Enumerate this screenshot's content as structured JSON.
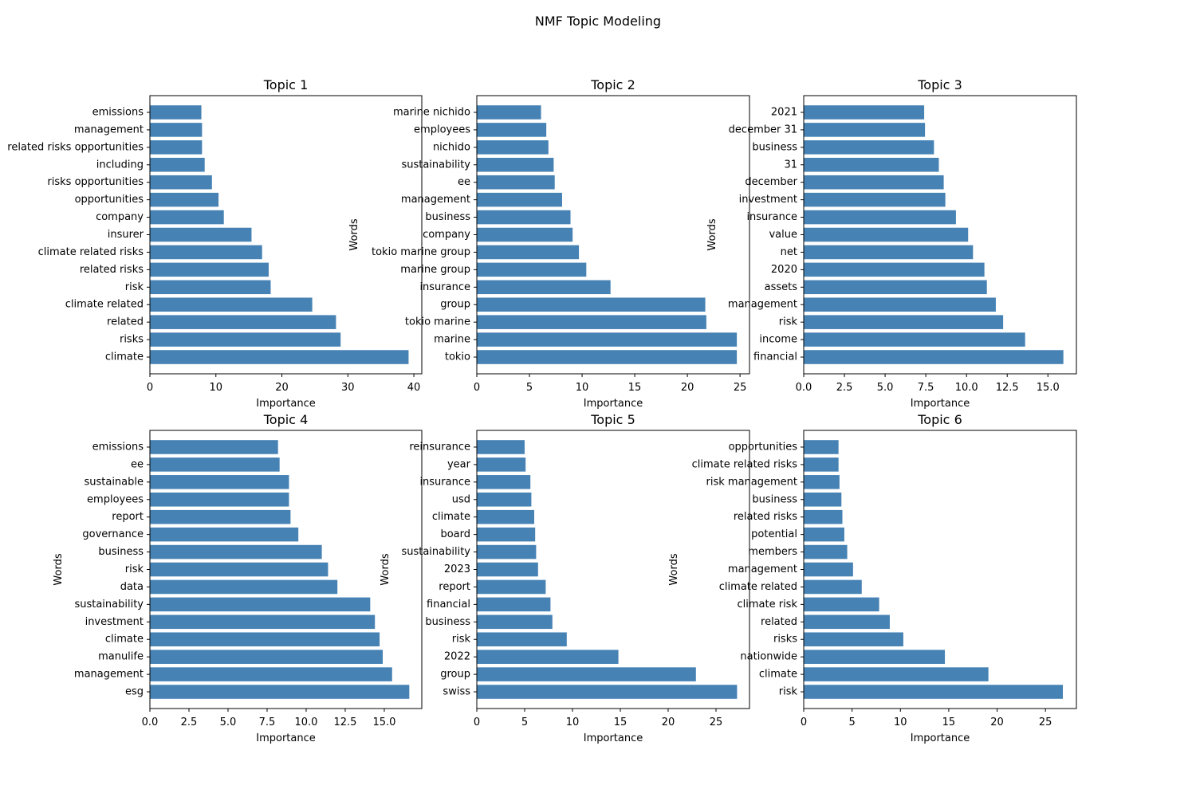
{
  "figure": {
    "title": "NMF Topic Modeling"
  },
  "colors": {
    "bar": "#4682b4",
    "axis": "#000000",
    "background": "#ffffff"
  },
  "chart_data": [
    {
      "type": "bar",
      "orientation": "horizontal",
      "title": "Topic 1",
      "xlabel": "Importance",
      "ylabel": "",
      "xlim": [
        0,
        41.2
      ],
      "xticks": [
        0,
        10,
        20,
        30,
        40
      ],
      "xtick_labels": [
        "0",
        "10",
        "20",
        "30",
        "40"
      ],
      "categories": [
        "climate",
        "risks",
        "related",
        "climate related",
        "risk",
        "related risks",
        "climate related risks",
        "insurer",
        "company",
        "opportunities",
        "risks opportunities",
        "including",
        "related risks opportunities",
        "management",
        "emissions"
      ],
      "values": [
        39.2,
        28.9,
        28.2,
        24.6,
        18.3,
        18.0,
        17.0,
        15.4,
        11.2,
        10.4,
        9.4,
        8.3,
        7.9,
        7.9,
        7.8
      ]
    },
    {
      "type": "bar",
      "orientation": "horizontal",
      "title": "Topic 2",
      "xlabel": "Importance",
      "ylabel": "Words",
      "xlim": [
        0,
        25.9
      ],
      "xticks": [
        0,
        5,
        10,
        15,
        20,
        25
      ],
      "xtick_labels": [
        "0",
        "5",
        "10",
        "15",
        "20",
        "25"
      ],
      "categories": [
        "tokio",
        "marine",
        "tokio marine",
        "group",
        "insurance",
        "marine group",
        "tokio marine group",
        "company",
        "business",
        "management",
        "ee",
        "sustainability",
        "nichido",
        "employees",
        "marine nichido"
      ],
      "values": [
        24.7,
        24.7,
        21.8,
        21.7,
        12.7,
        10.4,
        9.7,
        9.1,
        8.9,
        8.1,
        7.4,
        7.3,
        6.8,
        6.6,
        6.1
      ]
    },
    {
      "type": "bar",
      "orientation": "horizontal",
      "title": "Topic 3",
      "xlabel": "Importance",
      "ylabel": "Words",
      "xlim": [
        0,
        16.75
      ],
      "xticks": [
        0,
        2.5,
        5,
        7.5,
        10,
        12.5,
        15
      ],
      "xtick_labels": [
        "0.0",
        "2.5",
        "5.0",
        "7.5",
        "10.0",
        "12.5",
        "15.0"
      ],
      "categories": [
        "financial",
        "income",
        "risk",
        "management",
        "assets",
        "2020",
        "net",
        "value",
        "insurance",
        "investment",
        "december",
        "31",
        "business",
        "december 31",
        "2021"
      ],
      "values": [
        15.95,
        13.6,
        12.25,
        11.8,
        11.25,
        11.1,
        10.4,
        10.1,
        9.35,
        8.7,
        8.6,
        8.3,
        8.0,
        7.45,
        7.4
      ]
    },
    {
      "type": "bar",
      "orientation": "horizontal",
      "title": "Topic 4",
      "xlabel": "Importance",
      "ylabel": "Words",
      "xlim": [
        0,
        17.4
      ],
      "xticks": [
        0,
        2.5,
        5,
        7.5,
        10,
        12.5,
        15
      ],
      "xtick_labels": [
        "0.0",
        "2.5",
        "5.0",
        "7.5",
        "10.0",
        "12.5",
        "15.0"
      ],
      "categories": [
        "esg",
        "management",
        "manulife",
        "climate",
        "investment",
        "sustainability",
        "data",
        "risk",
        "business",
        "governance",
        "report",
        "employees",
        "sustainable",
        "ee",
        "emissions"
      ],
      "values": [
        16.6,
        15.5,
        14.9,
        14.7,
        14.4,
        14.1,
        12.0,
        11.4,
        11.0,
        9.5,
        9.0,
        8.9,
        8.9,
        8.3,
        8.2
      ]
    },
    {
      "type": "bar",
      "orientation": "horizontal",
      "title": "Topic 5",
      "xlabel": "Importance",
      "ylabel": "Words",
      "xlim": [
        0,
        28.5
      ],
      "xticks": [
        0,
        5,
        10,
        15,
        20,
        25
      ],
      "xtick_labels": [
        "0",
        "5",
        "10",
        "15",
        "20",
        "25"
      ],
      "categories": [
        "swiss",
        "group",
        "2022",
        "risk",
        "business",
        "financial",
        "report",
        "2023",
        "sustainability",
        "board",
        "climate",
        "usd",
        "insurance",
        "year",
        "reinsurance"
      ],
      "values": [
        27.2,
        22.9,
        14.8,
        9.4,
        7.9,
        7.7,
        7.2,
        6.4,
        6.2,
        6.1,
        6.0,
        5.7,
        5.6,
        5.1,
        5.0
      ]
    },
    {
      "type": "bar",
      "orientation": "horizontal",
      "title": "Topic 6",
      "xlabel": "Importance",
      "ylabel": "Words",
      "xlim": [
        0,
        28.2
      ],
      "xticks": [
        0,
        5,
        10,
        15,
        20,
        25
      ],
      "xtick_labels": [
        "0",
        "5",
        "10",
        "15",
        "20",
        "25"
      ],
      "categories": [
        "risk",
        "climate",
        "nationwide",
        "risks",
        "related",
        "climate risk",
        "climate related",
        "management",
        "members",
        "potential",
        "related risks",
        "business",
        "risk management",
        "climate related risks",
        "opportunities"
      ],
      "values": [
        26.8,
        19.1,
        14.6,
        10.3,
        8.9,
        7.8,
        6.0,
        5.1,
        4.5,
        4.2,
        4.0,
        3.9,
        3.7,
        3.6,
        3.6
      ]
    }
  ]
}
